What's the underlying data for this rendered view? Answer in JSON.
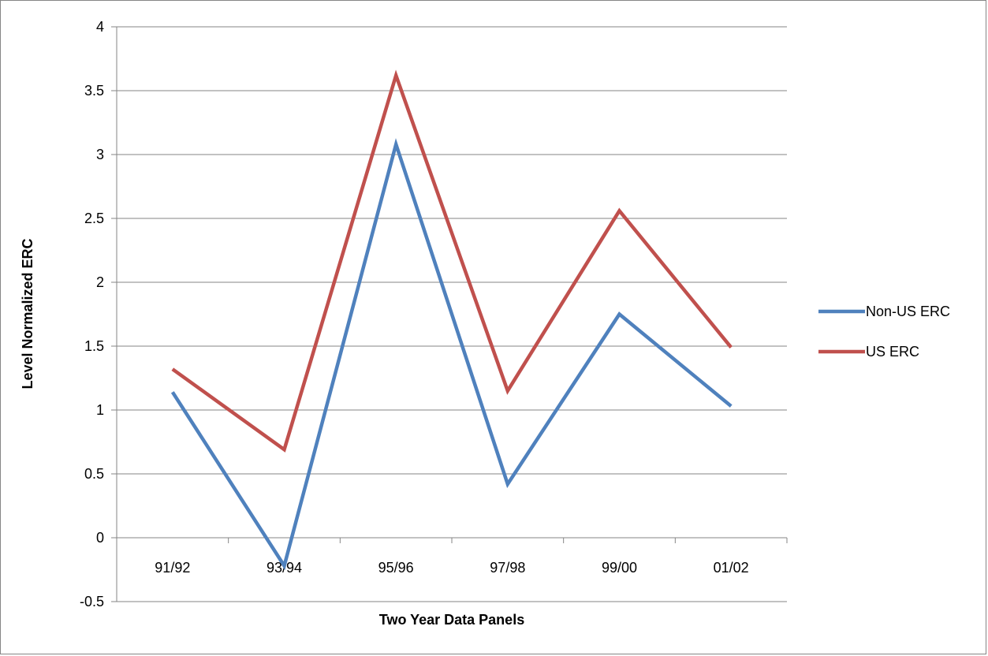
{
  "chart_data": {
    "type": "line",
    "title": "",
    "xlabel": "Two Year Data Panels",
    "ylabel": "Level Normalized ERC",
    "categories": [
      "91/92",
      "93/94",
      "95/96",
      "97/98",
      "99/00",
      "01/02"
    ],
    "yticks": [
      "-0.5",
      "0",
      "0.5",
      "1",
      "1.5",
      "2",
      "2.5",
      "3",
      "3.5",
      "4"
    ],
    "ylim": [
      -0.5,
      4
    ],
    "grid": "horizontal",
    "legend_position": "right",
    "series": [
      {
        "name": "Non-US ERC",
        "color": "#4f81bd",
        "values": [
          1.14,
          -0.22,
          3.08,
          0.42,
          1.75,
          1.03
        ]
      },
      {
        "name": "US ERC",
        "color": "#c0504d",
        "values": [
          1.32,
          0.69,
          3.62,
          1.15,
          2.56,
          1.49
        ]
      }
    ]
  }
}
